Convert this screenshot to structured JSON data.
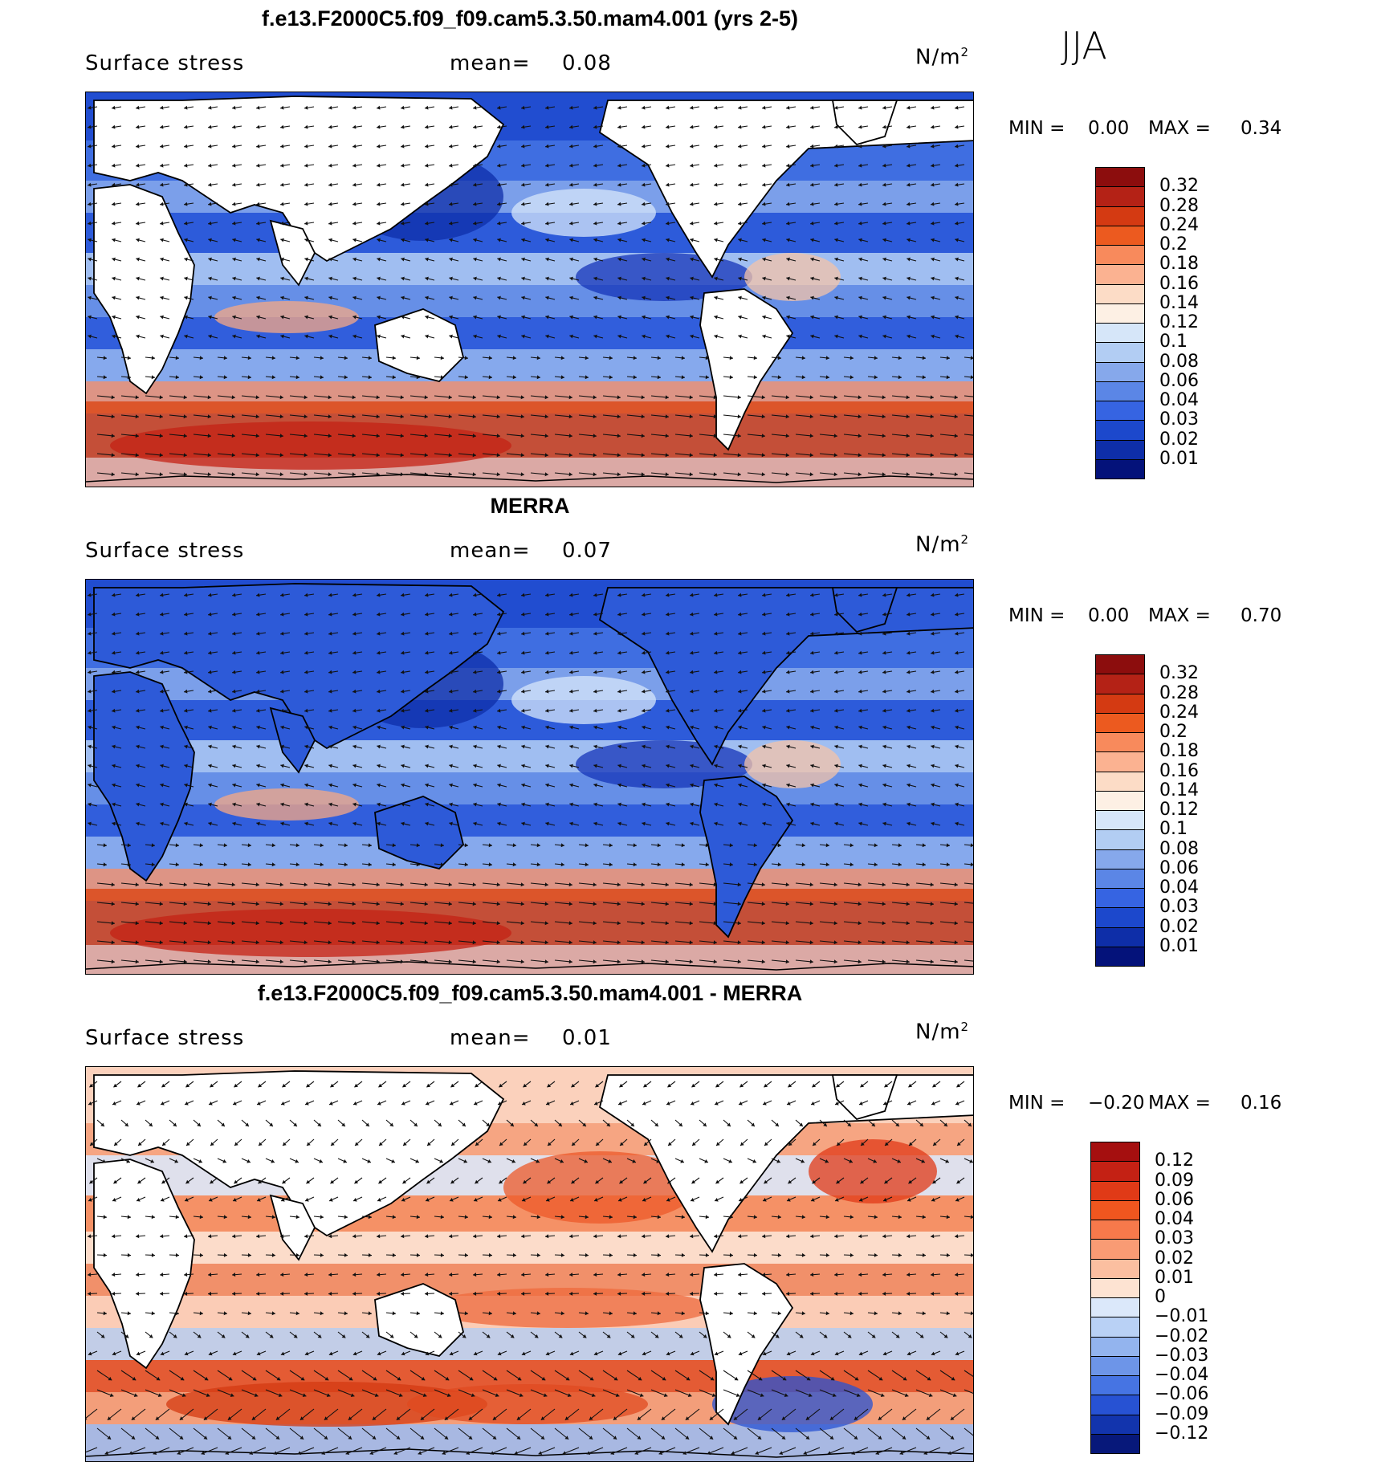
{
  "season": "JJA",
  "units_sup": "2",
  "units_base": "N/m",
  "panels": [
    {
      "title": "f.e13.F2000C5.f09_f09.cam5.3.50.mam4.001 (yrs 2-5)",
      "field": "Surface stress",
      "mean_label": "mean=",
      "mean_value": "0.08",
      "min_label": "MIN =",
      "min_value": "0.00",
      "max_label": "MAX =",
      "max_value": "0.34",
      "palette": "abs",
      "colorbar": {
        "labels": [
          "0.32",
          "0.28",
          "0.24",
          "0.2",
          "0.18",
          "0.16",
          "0.14",
          "0.12",
          "0.1",
          "0.08",
          "0.06",
          "0.04",
          "0.03",
          "0.02",
          "0.01"
        ],
        "colors": [
          "#8c0d0d",
          "#b42216",
          "#d43a12",
          "#ec5a1f",
          "#f88a5c",
          "#fbb291",
          "#fcdcc6",
          "#fdf0e4",
          "#d6e6f9",
          "#b2cdf3",
          "#86a8eb",
          "#5b86e6",
          "#3664e2",
          "#1c48cc",
          "#0e2ea8",
          "#04127a"
        ]
      }
    },
    {
      "title": "MERRA",
      "field": "Surface stress",
      "mean_label": "mean=",
      "mean_value": "0.07",
      "min_label": "MIN =",
      "min_value": "0.00",
      "max_label": "MAX =",
      "max_value": "0.70",
      "palette": "abs",
      "colorbar": {
        "labels": [
          "0.32",
          "0.28",
          "0.24",
          "0.2",
          "0.18",
          "0.16",
          "0.14",
          "0.12",
          "0.1",
          "0.08",
          "0.06",
          "0.04",
          "0.03",
          "0.02",
          "0.01"
        ],
        "colors": [
          "#8c0d0d",
          "#b42216",
          "#d43a12",
          "#ec5a1f",
          "#f88a5c",
          "#fbb291",
          "#fcdcc6",
          "#fdf0e4",
          "#d6e6f9",
          "#b2cdf3",
          "#86a8eb",
          "#5b86e6",
          "#3664e2",
          "#1c48cc",
          "#0e2ea8",
          "#04127a"
        ]
      }
    },
    {
      "title": "f.e13.F2000C5.f09_f09.cam5.3.50.mam4.001 - MERRA",
      "field": "Surface stress",
      "mean_label": "mean=",
      "mean_value": "0.01",
      "min_label": "MIN =",
      "min_value": "−0.20",
      "max_label": "MAX =",
      "max_value": "0.16",
      "palette": "diff",
      "colorbar": {
        "labels": [
          "0.12",
          "0.09",
          "0.06",
          "0.04",
          "0.03",
          "0.02",
          "0.01",
          "0",
          "−0.01",
          "−0.02",
          "−0.03",
          "−0.04",
          "−0.06",
          "−0.09",
          "−0.12"
        ],
        "colors": [
          "#a50f0f",
          "#c42114",
          "#e03a17",
          "#f0561f",
          "#f7794b",
          "#f99b74",
          "#fbbfa0",
          "#fde3d2",
          "#dbe8fa",
          "#b9d1f5",
          "#93b4ee",
          "#6d95e8",
          "#4674e3",
          "#2752d3",
          "#1234ad",
          "#07187a"
        ]
      }
    }
  ]
}
